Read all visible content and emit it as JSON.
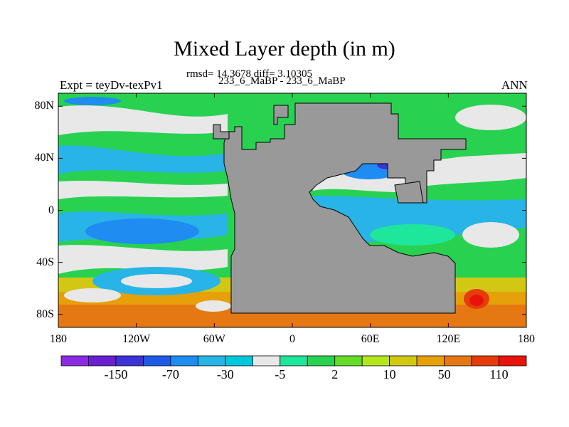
{
  "header": {
    "title": "Mixed Layer depth (in m)",
    "stats": "rmsd= 14.3678 diff= 3.10305",
    "runs": "233_6_MaBP - 233_6_MaBP",
    "experiment": "Expt = teyDv-texPv1",
    "season": "ANN"
  },
  "axes": {
    "y_ticks": [
      {
        "label": "80N",
        "lat": 80
      },
      {
        "label": "40N",
        "lat": 40
      },
      {
        "label": "0",
        "lat": 0
      },
      {
        "label": "40S",
        "lat": -40
      },
      {
        "label": "80S",
        "lat": -80
      }
    ],
    "x_ticks": [
      {
        "label": "180",
        "lon": -180
      },
      {
        "label": "120W",
        "lon": -120
      },
      {
        "label": "60W",
        "lon": -60
      },
      {
        "label": "0",
        "lon": 0
      },
      {
        "label": "60E",
        "lon": 60
      },
      {
        "label": "120E",
        "lon": 120
      },
      {
        "label": "180",
        "lon": 180
      }
    ],
    "lon_range": [
      -180,
      180
    ],
    "lat_range": [
      -90,
      90
    ]
  },
  "colorbar": {
    "colors": [
      "#8a2be2",
      "#6a1fd0",
      "#3c32d6",
      "#1e5ae6",
      "#1e8cf0",
      "#28b4e6",
      "#00c8dc",
      "#e8e8e8",
      "#1ee69a",
      "#28d250",
      "#64dc28",
      "#b4e61e",
      "#d2c814",
      "#e6a00a",
      "#e67814",
      "#e63c0a",
      "#e6140a"
    ],
    "labels": [
      {
        "text": "-150",
        "after_box": 1
      },
      {
        "text": "-70",
        "after_box": 3
      },
      {
        "text": "-30",
        "after_box": 5
      },
      {
        "text": "-5",
        "after_box": 7
      },
      {
        "text": "2",
        "after_box": 9
      },
      {
        "text": "10",
        "after_box": 11
      },
      {
        "text": "50",
        "after_box": 13
      },
      {
        "text": "110",
        "after_box": 15
      }
    ]
  },
  "map_colors": {
    "land": "#999999",
    "negative_strong": "#1e5ae6",
    "negative": "#28b4e6",
    "near_zero": "#e8e8e8",
    "positive_small": "#1ee69a",
    "positive": "#64dc28",
    "positive_mid": "#d2c814",
    "positive_high": "#e67814",
    "positive_max": "#e6140a"
  }
}
